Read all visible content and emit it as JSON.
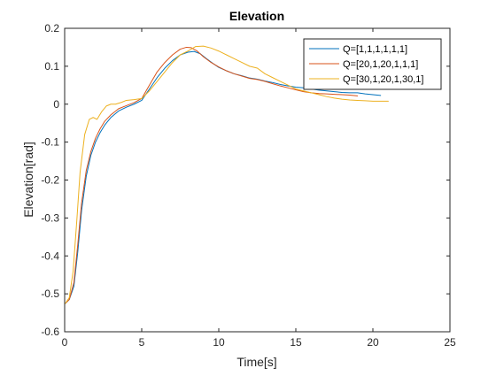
{
  "chart_data": {
    "type": "line",
    "title": "Elevation",
    "xlabel": "Time[s]",
    "ylabel": "Elevation[rad]",
    "xlim": [
      0,
      25
    ],
    "ylim": [
      -0.6,
      0.2
    ],
    "xticks": [
      0,
      5,
      10,
      15,
      20,
      25
    ],
    "yticks": [
      -0.6,
      -0.5,
      -0.4,
      -0.3,
      -0.2,
      -0.1,
      0,
      0.1,
      0.2
    ],
    "xtick_labels": [
      "0",
      "5",
      "10",
      "15",
      "20",
      "25"
    ],
    "ytick_labels": [
      "-0.6",
      "-0.5",
      "-0.4",
      "-0.3",
      "-0.2",
      "-0.1",
      "0",
      "0.1",
      "0.2"
    ],
    "grid": false,
    "legend_position": "top-right",
    "series": [
      {
        "name": "Q=[1,1,1,1,1,1]",
        "color": "#0072BD",
        "x": [
          0.05,
          0.3,
          0.6,
          0.85,
          1.1,
          1.4,
          1.7,
          2.0,
          2.3,
          2.6,
          3.0,
          3.5,
          4.0,
          4.5,
          5.0,
          5.5,
          6.0,
          6.5,
          7.0,
          7.5,
          8.0,
          8.4,
          8.8,
          9.2,
          9.6,
          10.0,
          10.5,
          11.0,
          11.5,
          12.0,
          12.5,
          13.0,
          13.5,
          14.0,
          14.5,
          15.0,
          15.5,
          16.0,
          16.5,
          17.0,
          17.5,
          18.0,
          18.5,
          19.0,
          19.5,
          20.0,
          20.5
        ],
        "y": [
          -0.525,
          -0.515,
          -0.48,
          -0.39,
          -0.28,
          -0.19,
          -0.135,
          -0.1,
          -0.075,
          -0.055,
          -0.035,
          -0.018,
          -0.008,
          0.0,
          0.01,
          0.04,
          0.07,
          0.095,
          0.115,
          0.13,
          0.137,
          0.139,
          0.133,
          0.12,
          0.108,
          0.097,
          0.088,
          0.08,
          0.075,
          0.069,
          0.066,
          0.061,
          0.057,
          0.052,
          0.048,
          0.045,
          0.043,
          0.04,
          0.037,
          0.035,
          0.033,
          0.031,
          0.03,
          0.03,
          0.027,
          0.025,
          0.023
        ]
      },
      {
        "name": "Q=[20,1,20,1,1,1]",
        "color": "#D95319",
        "x": [
          0.05,
          0.3,
          0.6,
          0.85,
          1.1,
          1.4,
          1.7,
          2.0,
          2.3,
          2.6,
          3.0,
          3.5,
          4.0,
          4.5,
          5.0,
          5.5,
          6.0,
          6.5,
          7.0,
          7.5,
          7.9,
          8.2,
          8.6,
          9.0,
          9.5,
          10.0,
          10.5,
          11.0,
          11.5,
          12.0,
          12.5,
          13.0,
          13.5,
          14.0,
          14.5,
          15.0,
          15.5,
          16.0,
          16.5,
          17.0,
          17.5,
          18.0,
          18.5,
          19.0
        ],
        "y": [
          -0.525,
          -0.515,
          -0.47,
          -0.37,
          -0.26,
          -0.175,
          -0.125,
          -0.09,
          -0.065,
          -0.045,
          -0.028,
          -0.012,
          -0.004,
          0.004,
          0.015,
          0.05,
          0.085,
          0.11,
          0.13,
          0.145,
          0.15,
          0.149,
          0.14,
          0.125,
          0.11,
          0.098,
          0.088,
          0.08,
          0.074,
          0.068,
          0.065,
          0.06,
          0.054,
          0.048,
          0.043,
          0.038,
          0.033,
          0.03,
          0.028,
          0.027,
          0.026,
          0.025,
          0.024,
          0.022
        ]
      },
      {
        "name": "Q=[30,1,20,1,30,1]",
        "color": "#EDB120",
        "x": [
          0.05,
          0.3,
          0.55,
          0.8,
          1.0,
          1.3,
          1.6,
          1.85,
          2.1,
          2.4,
          2.7,
          3.0,
          3.3,
          3.7,
          4.0,
          4.5,
          5.0,
          5.5,
          6.0,
          6.5,
          7.0,
          7.5,
          8.0,
          8.5,
          9.0,
          9.5,
          10.0,
          10.5,
          11.0,
          11.5,
          12.0,
          12.5,
          13.0,
          13.5,
          14.0,
          14.5,
          15.0,
          15.5,
          16.0,
          16.5,
          17.0,
          17.5,
          18.0,
          18.5,
          19.0,
          19.5,
          20.0,
          20.5,
          21.0
        ],
        "y": [
          -0.525,
          -0.51,
          -0.44,
          -0.3,
          -0.18,
          -0.08,
          -0.04,
          -0.035,
          -0.04,
          -0.02,
          -0.005,
          0.0,
          0.0,
          0.005,
          0.01,
          0.012,
          0.015,
          0.035,
          0.06,
          0.085,
          0.11,
          0.13,
          0.14,
          0.152,
          0.153,
          0.148,
          0.14,
          0.13,
          0.12,
          0.11,
          0.1,
          0.095,
          0.08,
          0.07,
          0.06,
          0.05,
          0.04,
          0.035,
          0.03,
          0.025,
          0.02,
          0.016,
          0.013,
          0.011,
          0.01,
          0.009,
          0.008,
          0.008,
          0.008
        ]
      }
    ]
  }
}
